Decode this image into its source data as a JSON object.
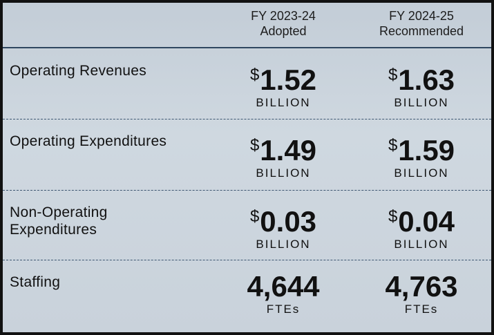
{
  "table": {
    "headers": [
      [
        "FY 2023-24",
        "Adopted"
      ],
      [
        "FY 2024-25",
        "Recommended"
      ]
    ],
    "rows": [
      {
        "label": [
          "Operating Revenues"
        ],
        "cells": [
          {
            "prefix": "$",
            "amount": "1.52",
            "unit": "BILLION"
          },
          {
            "prefix": "$",
            "amount": "1.63",
            "unit": "BILLION"
          }
        ]
      },
      {
        "label": [
          "Operating Expenditures"
        ],
        "cells": [
          {
            "prefix": "$",
            "amount": "1.49",
            "unit": "BILLION"
          },
          {
            "prefix": "$",
            "amount": "1.59",
            "unit": "BILLION"
          }
        ]
      },
      {
        "label": [
          "Non-Operating",
          "Expenditures"
        ],
        "cells": [
          {
            "prefix": "$",
            "amount": "0.03",
            "unit": "BILLION"
          },
          {
            "prefix": "$",
            "amount": "0.04",
            "unit": "BILLION"
          }
        ]
      },
      {
        "label": [
          "Staffing"
        ],
        "cells": [
          {
            "amount": "4,644",
            "unit": "FTEs"
          },
          {
            "amount": "4,763",
            "unit": "FTEs"
          }
        ]
      }
    ]
  }
}
